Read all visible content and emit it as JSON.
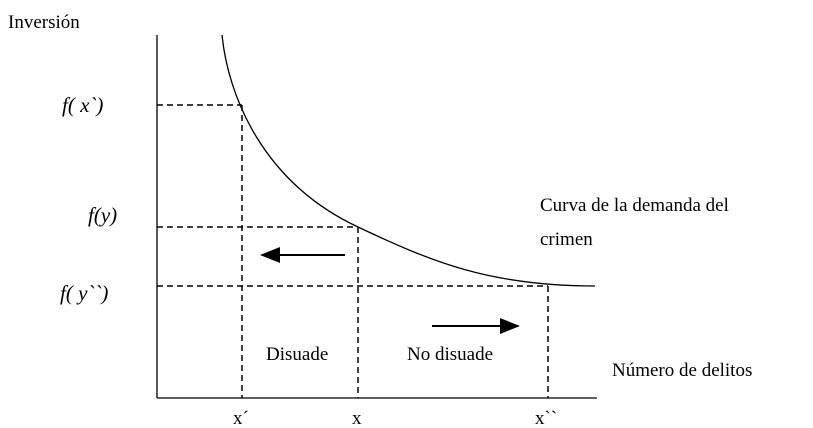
{
  "axis_labels": {
    "y": "Inversión",
    "x": "Número de delitos"
  },
  "y_labels": [
    "f( x`)",
    "f(y)",
    "f( y``)"
  ],
  "x_labels": [
    "x´",
    "x",
    "x``"
  ],
  "curve_label": [
    "Curva de la demanda del",
    "crimen"
  ],
  "regions": [
    "Disuade",
    "No disuade"
  ]
}
